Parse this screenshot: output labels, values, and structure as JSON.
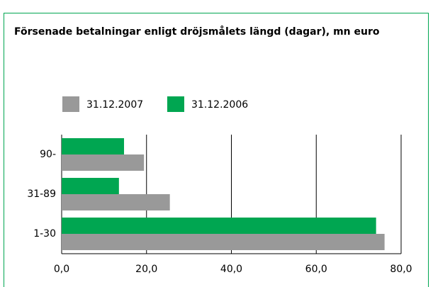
{
  "chart_data": {
    "type": "barh",
    "title": "Försenade betalningar enligt dröjsmålets längd (dagar), mn euro",
    "categories": [
      "90-",
      "31-89",
      "1-30"
    ],
    "series": [
      {
        "name": "31.12.2007",
        "color": "#999999",
        "values": [
          19.4,
          25.5,
          76.1
        ]
      },
      {
        "name": "31.12.2006",
        "color": "#00a651",
        "values": [
          14.7,
          13.5,
          74.1
        ]
      }
    ],
    "xlim": [
      0,
      80
    ],
    "xticks": [
      {
        "value": 0,
        "label": "0,0"
      },
      {
        "value": 20,
        "label": "20,0"
      },
      {
        "value": 40,
        "label": "40,0"
      },
      {
        "value": 60,
        "label": "60,0"
      },
      {
        "value": 80,
        "label": "80,0"
      }
    ],
    "grid": true
  }
}
